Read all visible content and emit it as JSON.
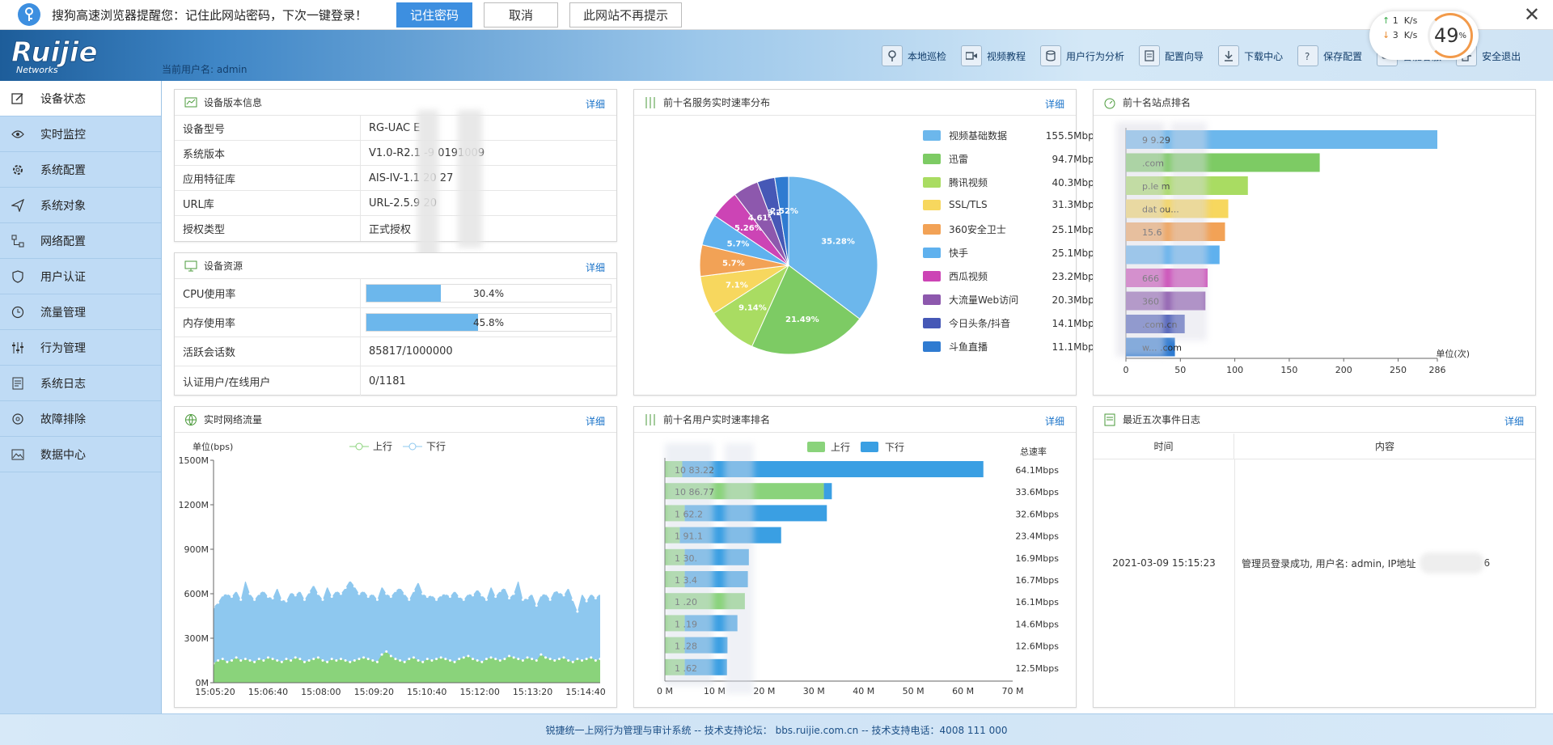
{
  "browser_prompt": {
    "message": "搜狗高速浏览器提醒您：记住此网站密码，下次一键登录！",
    "remember_label": "记住密码",
    "cancel_label": "取消",
    "never_label": "此网站不再提示"
  },
  "header": {
    "logo_text": "Ruijie",
    "logo_sub": "Networks",
    "current_user": "当前用户名: admin",
    "nav": [
      {
        "label": "本地巡检",
        "icon": "location-icon"
      },
      {
        "label": "视频教程",
        "icon": "video-icon"
      },
      {
        "label": "用户行为分析",
        "icon": "database-icon"
      },
      {
        "label": "配置向导",
        "icon": "wizard-icon"
      },
      {
        "label": "下载中心",
        "icon": "download-icon"
      },
      {
        "label": "保存配置",
        "icon": "help-icon"
      },
      {
        "label": "智能客服",
        "icon": "chat-icon"
      },
      {
        "label": "安全退出",
        "icon": "logout-icon"
      }
    ]
  },
  "speed_widget": {
    "up_value": "1",
    "up_unit": "K/s",
    "down_value": "3",
    "down_unit": "K/s",
    "percent": "49",
    "percent_sign": "%"
  },
  "sidebar": {
    "items": [
      {
        "label": "设备状态",
        "icon": "edit-icon",
        "active": true
      },
      {
        "label": "实时监控",
        "icon": "eye-icon"
      },
      {
        "label": "系统配置",
        "icon": "gear-icon"
      },
      {
        "label": "系统对象",
        "icon": "send-icon"
      },
      {
        "label": "网络配置",
        "icon": "network-icon"
      },
      {
        "label": "用户认证",
        "icon": "shield-icon"
      },
      {
        "label": "流量管理",
        "icon": "clock-icon"
      },
      {
        "label": "行为管理",
        "icon": "sliders-icon"
      },
      {
        "label": "系统日志",
        "icon": "log-icon"
      },
      {
        "label": "故障排除",
        "icon": "wrench-icon"
      },
      {
        "label": "数据中心",
        "icon": "image-icon"
      }
    ]
  },
  "more_label": "详细",
  "device_info": {
    "title": "设备版本信息",
    "rows": [
      {
        "key": "设备型号",
        "value": "RG-UAC      E"
      },
      {
        "key": "系统版本",
        "value": "V1.0-R2.1        -9      0191009"
      },
      {
        "key": "应用特征库",
        "value": "AIS-IV-1.1       20      27"
      },
      {
        "key": "URL库",
        "value": "URL-2.5.9        20"
      },
      {
        "key": "授权类型",
        "value": "正式授权"
      }
    ]
  },
  "device_resource": {
    "title": "设备资源",
    "cpu_label": "CPU使用率",
    "cpu_value": "30.4%",
    "cpu_fraction": 0.304,
    "mem_label": "内存使用率",
    "mem_value": "45.8%",
    "mem_fraction": 0.458,
    "session_label": "活跃会话数",
    "session_value": "85817/1000000",
    "auth_label": "认证用户/在线用户",
    "auth_value": "0/1181"
  },
  "pie_panel": {
    "title": "前十名服务实时速率分布"
  },
  "sites_panel": {
    "title": "前十名站点排名",
    "unit": "单位(次)"
  },
  "traffic_panel": {
    "title": "实时网络流量",
    "unit": "单位(bps)",
    "legend_up": "上行",
    "legend_down": "下行"
  },
  "users_panel": {
    "title": "前十名用户实时速率排名",
    "legend_up": "上行",
    "legend_down": "下行",
    "total_label": "总速率"
  },
  "events_panel": {
    "title": "最近五次事件日志",
    "col_time": "时间",
    "col_content": "内容",
    "rows": [
      {
        "time": "2021-03-09 15:15:23",
        "content": "管理员登录成功, 用户名: admin, IP地址",
        "tail": "6"
      }
    ]
  },
  "footer": {
    "text": "锐捷统一上网行为管理与审计系统 -- 技术支持论坛： bbs.ruijie.com.cn -- 技术支持电话：4008 111 000"
  },
  "chart_data": [
    {
      "type": "pie",
      "categories": [
        "视频基础数据",
        "迅雷",
        "腾讯视频",
        "SSL/TLS",
        "360安全卫士",
        "快手",
        "西瓜视频",
        "大流量Web访问",
        "今日头条/抖音",
        "斗鱼直播"
      ],
      "values": [
        35.28,
        21.49,
        9.14,
        7.1,
        5.7,
        5.7,
        5.26,
        4.61,
        3.2,
        2.52
      ],
      "slice_labels": [
        "35.28%",
        "21.49%",
        "9.14%",
        "7.1%",
        "5.7%",
        "5.7%",
        "5.26%",
        "4.61%",
        "3.2",
        "2.52%"
      ],
      "legend_values": [
        "155.5Mbps",
        "94.7Mbps",
        "40.3Mbps",
        "31.3Mbps",
        "25.1Mbps",
        "25.1Mbps",
        "23.2Mbps",
        "20.3Mbps",
        "14.1Mbps",
        "11.1Mbps"
      ],
      "colors": [
        "#6cb7ec",
        "#7dcb64",
        "#a9dc62",
        "#f7d75e",
        "#f2a256",
        "#5fb1ee",
        "#cc44b5",
        "#8d58ad",
        "#4658b6",
        "#2f7bd1"
      ],
      "legend": "right"
    },
    {
      "type": "bar",
      "orientation": "horizontal",
      "categories": [
        "9    9.29",
        "   .com",
        "   p.le    m",
        "  dat    ou...",
        "   15.6",
        "",
        "   666",
        "   360",
        "   .com.cn",
        "w...     .com"
      ],
      "values": [
        286,
        178,
        112,
        94,
        91,
        86,
        75,
        73,
        54,
        45
      ],
      "colors": [
        "#6cb7ec",
        "#7dcb64",
        "#a9dc62",
        "#f7d75e",
        "#f2a256",
        "#5fb1ee",
        "#cc44b5",
        "#8d58ad",
        "#4658b6",
        "#2f7bd1"
      ],
      "x_ticks": [
        "0",
        "50",
        "100",
        "150",
        "200",
        "250",
        "286"
      ],
      "xlim": [
        0,
        286
      ],
      "xlabel": "单位(次)"
    },
    {
      "type": "area",
      "ylabel": "单位(bps)",
      "y_ticks": [
        "0M",
        "300M",
        "600M",
        "900M",
        "1200M",
        "1500M"
      ],
      "ylim": [
        0,
        1500
      ],
      "x_ticks": [
        "15:05:20",
        "15:06:40",
        "15:08:00",
        "15:09:20",
        "15:10:40",
        "15:12:00",
        "15:13:20",
        "15:14:40"
      ],
      "series": [
        {
          "name": "下行",
          "color": "#8ec8ef",
          "values": [
            510,
            540,
            590,
            600,
            580,
            620,
            560,
            690,
            600,
            560,
            600,
            620,
            580,
            570,
            640,
            560,
            550,
            610,
            590,
            620,
            560,
            610,
            660,
            600,
            560,
            650,
            580,
            620,
            600,
            640,
            690,
            650,
            600,
            620,
            580,
            600,
            560,
            650,
            600,
            580,
            620,
            640,
            600,
            560,
            620,
            680,
            600,
            580,
            590,
            560,
            590,
            600,
            580,
            620,
            580,
            560,
            600,
            590,
            630,
            590,
            560,
            650,
            580,
            620,
            640,
            570,
            600,
            690,
            560,
            570,
            600,
            520,
            590,
            600,
            560,
            620,
            610,
            590,
            640,
            560,
            480,
            600,
            550,
            600,
            570,
            600
          ]
        },
        {
          "name": "上行",
          "color": "#8ad37b",
          "values": [
            130,
            150,
            160,
            140,
            150,
            170,
            150,
            160,
            150,
            140,
            160,
            150,
            170,
            160,
            150,
            140,
            160,
            150,
            170,
            160,
            140,
            150,
            160,
            170,
            150,
            140,
            160,
            150,
            160,
            150,
            140,
            150,
            160,
            170,
            160,
            150,
            140,
            190,
            210,
            180,
            160,
            150,
            140,
            160,
            170,
            150,
            140,
            160,
            150,
            160,
            170,
            160,
            150,
            140,
            160,
            170,
            180,
            160,
            150,
            140,
            160,
            170,
            160,
            150,
            160,
            180,
            170,
            160,
            150,
            170,
            160,
            150,
            190,
            170,
            160,
            150,
            160,
            170,
            150,
            140,
            160,
            150,
            160,
            170,
            150,
            160
          ]
        }
      ],
      "legend": "top-center"
    },
    {
      "type": "bar",
      "orientation": "horizontal",
      "stacked": true,
      "categories": [
        "10    83.22",
        "10    86.77",
        "1     62.2",
        "1     91.1",
        "1     30.",
        "1     3.4",
        "1     .20",
        "1     .19",
        "1     .28",
        "1     .62"
      ],
      "series": [
        {
          "name": "上行",
          "color": "#8ad37b",
          "values": [
            3.5,
            32.0,
            4.0,
            3.0,
            4.0,
            4.0,
            16.1,
            4.0,
            4.0,
            4.0
          ]
        },
        {
          "name": "下行",
          "color": "#3a9fe3",
          "values": [
            60.6,
            1.6,
            28.6,
            20.4,
            12.9,
            12.7,
            0,
            10.6,
            8.6,
            8.5
          ]
        }
      ],
      "totals": [
        "64.1Mbps",
        "33.6Mbps",
        "32.6Mbps",
        "23.4Mbps",
        "16.9Mbps",
        "16.7Mbps",
        "16.1Mbps",
        "14.6Mbps",
        "12.6Mbps",
        "12.5Mbps"
      ],
      "x_ticks": [
        "0 M",
        "10 M",
        "20 M",
        "30 M",
        "40 M",
        "50 M",
        "60 M",
        "70 M"
      ],
      "xlim": [
        0,
        70
      ],
      "legend": "top-center"
    }
  ]
}
